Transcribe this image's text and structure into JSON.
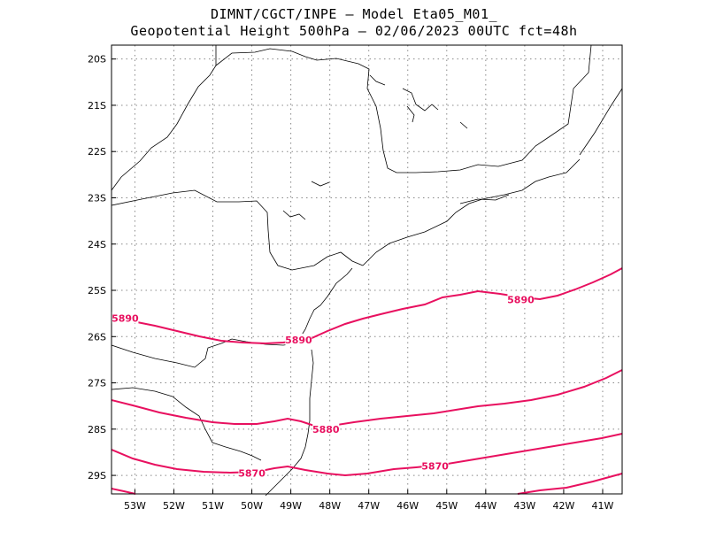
{
  "title": {
    "line1": "DIMNT/CGCT/INPE  —  Model Eta05_M01_",
    "line2": "Geopotential Height 500hPa  —  02/06/2023 00UTC fct=48h"
  },
  "map": {
    "lon_range": [
      -53.6,
      -40.5
    ],
    "lat_range": [
      -29.4,
      -19.7
    ],
    "lat_ticks": [
      "20S",
      "21S",
      "22S",
      "23S",
      "24S",
      "25S",
      "26S",
      "27S",
      "28S",
      "29S"
    ],
    "lon_ticks": [
      "53W",
      "52W",
      "51W",
      "50W",
      "49W",
      "48W",
      "47W",
      "46W",
      "45W",
      "44W",
      "43W",
      "42W",
      "41W"
    ],
    "contour_color": "#e8105f",
    "contours": [
      {
        "label": "5890",
        "labels_at": [
          [
            -53.25,
            -25.6
          ],
          [
            -48.8,
            -26.07
          ],
          [
            -43.1,
            -25.2
          ]
        ]
      },
      {
        "label": "5880",
        "labels_at": [
          [
            -48.1,
            -28.0
          ]
        ]
      },
      {
        "label": "5870",
        "labels_at": [
          [
            -50.0,
            -28.95
          ],
          [
            -45.3,
            -28.8
          ]
        ]
      }
    ]
  }
}
